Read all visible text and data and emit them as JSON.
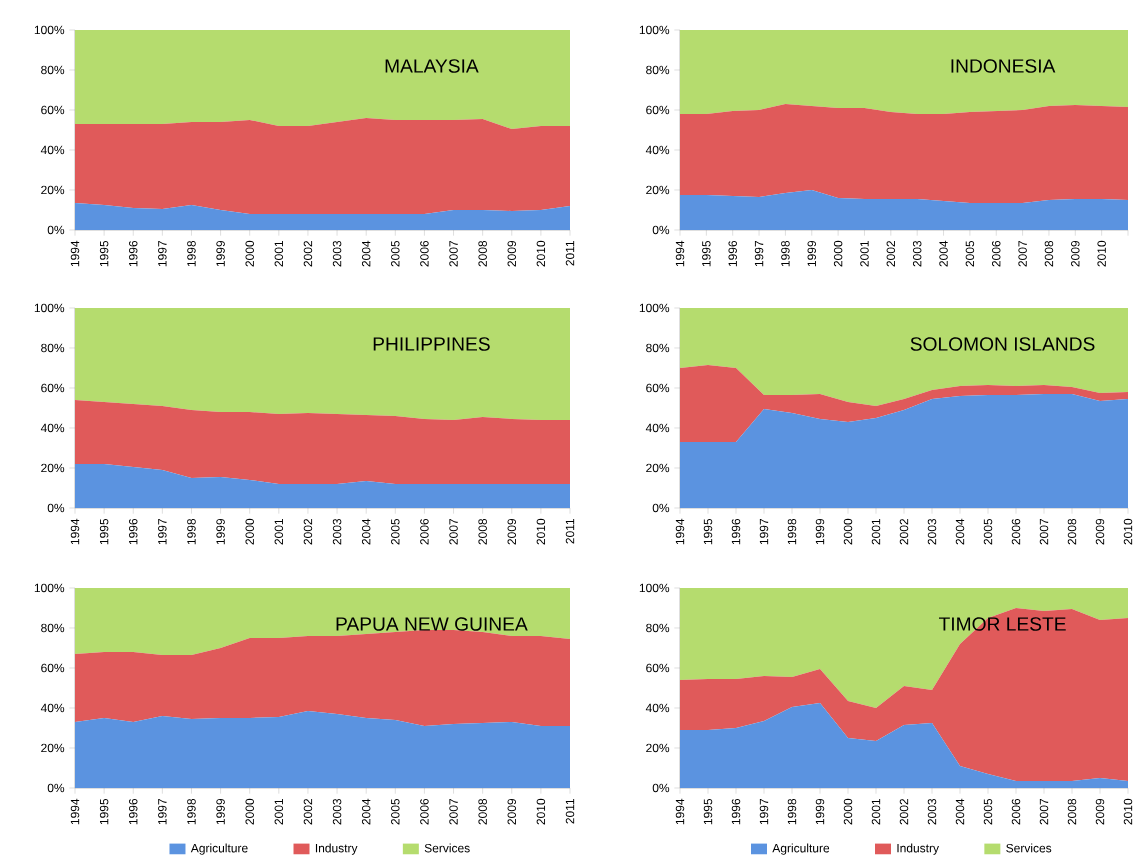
{
  "chart_data": [
    {
      "type": "area",
      "stacked": true,
      "title": "MALAYSIA",
      "categories": [
        "1994",
        "1995",
        "1996",
        "1997",
        "1998",
        "1999",
        "2000",
        "2001",
        "2002",
        "2003",
        "2004",
        "2005",
        "2006",
        "2007",
        "2008",
        "2009",
        "2010",
        "2011"
      ],
      "ylim": [
        0,
        100
      ],
      "yticks": [
        {
          "value": 0,
          "label": "0%"
        },
        {
          "value": 20,
          "label": "20%"
        },
        {
          "value": 40,
          "label": "40%"
        },
        {
          "value": 60,
          "label": "60%"
        },
        {
          "value": 80,
          "label": "80%"
        },
        {
          "value": 100,
          "label": "100%"
        }
      ],
      "legend": false,
      "series": [
        {
          "color": "#5b93e0",
          "values": [
            13.5,
            12.5,
            11,
            10.5,
            12.5,
            10,
            8,
            8,
            8,
            8,
            8,
            8,
            8,
            10,
            10,
            9.5,
            10,
            12
          ]
        },
        {
          "color": "#e05a5a",
          "values": [
            39.5,
            40.5,
            42,
            42.5,
            41.5,
            44,
            47,
            44,
            44,
            46,
            48,
            47,
            47,
            45,
            45.5,
            41,
            42,
            40
          ]
        },
        {
          "color": "#b5dc6e",
          "values": [
            47,
            47,
            47,
            47,
            46,
            46,
            45,
            48,
            48,
            46,
            44,
            45,
            45,
            45,
            44.5,
            49.5,
            48,
            48
          ]
        }
      ]
    },
    {
      "type": "area",
      "stacked": true,
      "title": "INDONESIA",
      "categories": [
        "1994",
        "1995",
        "1996",
        "1997",
        "1998",
        "1999",
        "2000",
        "2001",
        "2002",
        "2003",
        "2004",
        "2005",
        "2006",
        "2007",
        "2008",
        "2009",
        "2010",
        null
      ],
      "ylim": [
        0,
        100
      ],
      "yticks": [
        {
          "value": 0,
          "label": "0%"
        },
        {
          "value": 20,
          "label": "20%"
        },
        {
          "value": 40,
          "label": "40%"
        },
        {
          "value": 60,
          "label": "60%"
        },
        {
          "value": 80,
          "label": "80%"
        },
        {
          "value": 100,
          "label": "100%"
        }
      ],
      "legend": false,
      "series": [
        {
          "color": "#5b93e0",
          "values": [
            17.5,
            17.5,
            17,
            16.5,
            18.5,
            20,
            16,
            15.5,
            15.5,
            15.5,
            14.5,
            13.5,
            13.5,
            13.5,
            15,
            15.5,
            15.5,
            15
          ]
        },
        {
          "color": "#e05a5a",
          "values": [
            40.5,
            40.5,
            42.5,
            43.5,
            44.5,
            42,
            45,
            45.5,
            43.5,
            42.5,
            43.5,
            45.5,
            46,
            46.5,
            47,
            47,
            46.5,
            46.5
          ]
        },
        {
          "color": "#b5dc6e",
          "values": [
            42,
            42,
            40.5,
            40,
            37,
            38,
            39,
            39,
            41,
            42,
            42,
            41,
            40.5,
            40,
            38,
            37.5,
            38,
            38.5
          ]
        }
      ]
    },
    {
      "type": "area",
      "stacked": true,
      "title": "PHILIPPINES",
      "categories": [
        "1994",
        "1995",
        "1996",
        "1997",
        "1998",
        "1999",
        "2000",
        "2001",
        "2002",
        "2003",
        "2004",
        "2005",
        "2006",
        "2007",
        "2008",
        "2009",
        "2010",
        "2011"
      ],
      "ylim": [
        0,
        100
      ],
      "yticks": [
        {
          "value": 0,
          "label": "0%"
        },
        {
          "value": 20,
          "label": "20%"
        },
        {
          "value": 40,
          "label": "40%"
        },
        {
          "value": 60,
          "label": "60%"
        },
        {
          "value": 80,
          "label": "80%"
        },
        {
          "value": 100,
          "label": "100%"
        }
      ],
      "legend": false,
      "series": [
        {
          "color": "#5b93e0",
          "values": [
            22,
            22,
            20.5,
            19,
            15,
            15.5,
            14,
            12,
            12,
            12,
            13.5,
            12,
            12,
            12,
            12,
            12,
            12,
            12
          ]
        },
        {
          "color": "#e05a5a",
          "values": [
            32,
            31,
            31.5,
            32,
            34,
            32.5,
            34,
            35,
            35.5,
            35,
            33,
            34,
            32.5,
            32,
            33.5,
            32.5,
            32,
            32
          ]
        },
        {
          "color": "#b5dc6e",
          "values": [
            46,
            47,
            48,
            49,
            51,
            52,
            52,
            53,
            52.5,
            53,
            53.5,
            54,
            55.5,
            56,
            54.5,
            55.5,
            56,
            56
          ]
        }
      ]
    },
    {
      "type": "area",
      "stacked": true,
      "title": "SOLOMON ISLANDS",
      "categories": [
        "1994",
        "1995",
        "1996",
        "1997",
        "1998",
        "1999",
        "2000",
        "2001",
        "2002",
        "2003",
        "2004",
        "2005",
        "2006",
        "2007",
        "2008",
        "2009",
        "2010"
      ],
      "ylim": [
        0,
        100
      ],
      "yticks": [
        {
          "value": 0,
          "label": "0%"
        },
        {
          "value": 20,
          "label": "20%"
        },
        {
          "value": 40,
          "label": "40%"
        },
        {
          "value": 60,
          "label": "60%"
        },
        {
          "value": 80,
          "label": "80%"
        },
        {
          "value": 100,
          "label": "100%"
        }
      ],
      "legend": false,
      "series": [
        {
          "color": "#5b93e0",
          "values": [
            33,
            33,
            33,
            49.5,
            47.5,
            44.5,
            43,
            45,
            49,
            54.5,
            56,
            56.5,
            56.5,
            57,
            57,
            53.5,
            54.5
          ]
        },
        {
          "color": "#e05a5a",
          "values": [
            37,
            38.5,
            37,
            7,
            9,
            12.5,
            10,
            6,
            5.5,
            4.5,
            5,
            5,
            4.5,
            4.5,
            3.5,
            4,
            3.5
          ]
        },
        {
          "color": "#b5dc6e",
          "values": [
            30,
            28.5,
            30,
            43.5,
            43.5,
            43,
            47,
            49,
            45.5,
            41,
            39,
            38.5,
            39,
            38.5,
            39.5,
            42.5,
            42
          ]
        }
      ]
    },
    {
      "type": "area",
      "stacked": true,
      "title": "PAPUA NEW GUINEA",
      "categories": [
        "1994",
        "1995",
        "1996",
        "1997",
        "1998",
        "1999",
        "2000",
        "2001",
        "2002",
        "2003",
        "2004",
        "2005",
        "2006",
        "2007",
        "2008",
        "2009",
        "2010",
        "2011"
      ],
      "ylim": [
        0,
        100
      ],
      "yticks": [
        {
          "value": 0,
          "label": "0%"
        },
        {
          "value": 20,
          "label": "20%"
        },
        {
          "value": 40,
          "label": "40%"
        },
        {
          "value": 60,
          "label": "60%"
        },
        {
          "value": 80,
          "label": "80%"
        },
        {
          "value": 100,
          "label": "100%"
        }
      ],
      "legend": "bottom",
      "series": [
        {
          "name": "Agriculture",
          "color": "#5b93e0",
          "values": [
            33,
            35,
            33,
            36,
            34.5,
            35,
            35,
            35.5,
            38.5,
            37,
            35,
            34,
            31,
            32,
            32.5,
            33,
            31,
            31
          ]
        },
        {
          "name": "Industry",
          "color": "#e05a5a",
          "values": [
            34,
            33,
            35,
            30.5,
            32,
            35,
            40,
            39.5,
            37.5,
            39,
            42,
            44,
            48,
            47,
            45.5,
            43,
            45,
            43.5
          ]
        },
        {
          "name": "Services",
          "color": "#b5dc6e",
          "values": [
            33,
            32,
            32,
            33.5,
            33.5,
            30,
            25,
            25,
            24,
            24,
            23,
            22,
            21,
            21,
            22,
            24,
            24,
            25.5
          ]
        }
      ]
    },
    {
      "type": "area",
      "stacked": true,
      "title": "TIMOR LESTE",
      "categories": [
        "1994",
        "1995",
        "1996",
        "1997",
        "1998",
        "1999",
        "2000",
        "2001",
        "2002",
        "2003",
        "2004",
        "2005",
        "2006",
        "2007",
        "2008",
        "2009",
        "2010"
      ],
      "ylim": [
        0,
        100
      ],
      "yticks": [
        {
          "value": 0,
          "label": "0%"
        },
        {
          "value": 20,
          "label": "20%"
        },
        {
          "value": 40,
          "label": "40%"
        },
        {
          "value": 60,
          "label": "60%"
        },
        {
          "value": 80,
          "label": "80%"
        },
        {
          "value": 100,
          "label": "100%"
        }
      ],
      "legend": "bottom",
      "series": [
        {
          "name": "Agriculture",
          "color": "#5b93e0",
          "values": [
            29,
            29,
            30,
            33.5,
            40.5,
            42.5,
            25,
            23.5,
            31.5,
            32.5,
            11,
            7,
            3.5,
            3.5,
            3.5,
            5,
            3.5
          ]
        },
        {
          "name": "Industry",
          "color": "#e05a5a",
          "values": [
            25,
            25.5,
            24.5,
            22.5,
            15,
            17,
            18.5,
            16.5,
            19.5,
            16.5,
            61,
            78,
            86.5,
            85,
            86,
            79,
            81.5
          ]
        },
        {
          "name": "Services",
          "color": "#b5dc6e",
          "values": [
            46,
            45.5,
            45.5,
            44,
            44.5,
            40.5,
            56.5,
            60,
            49,
            51,
            28,
            15,
            10,
            11.5,
            10.5,
            16,
            15
          ]
        }
      ]
    }
  ]
}
